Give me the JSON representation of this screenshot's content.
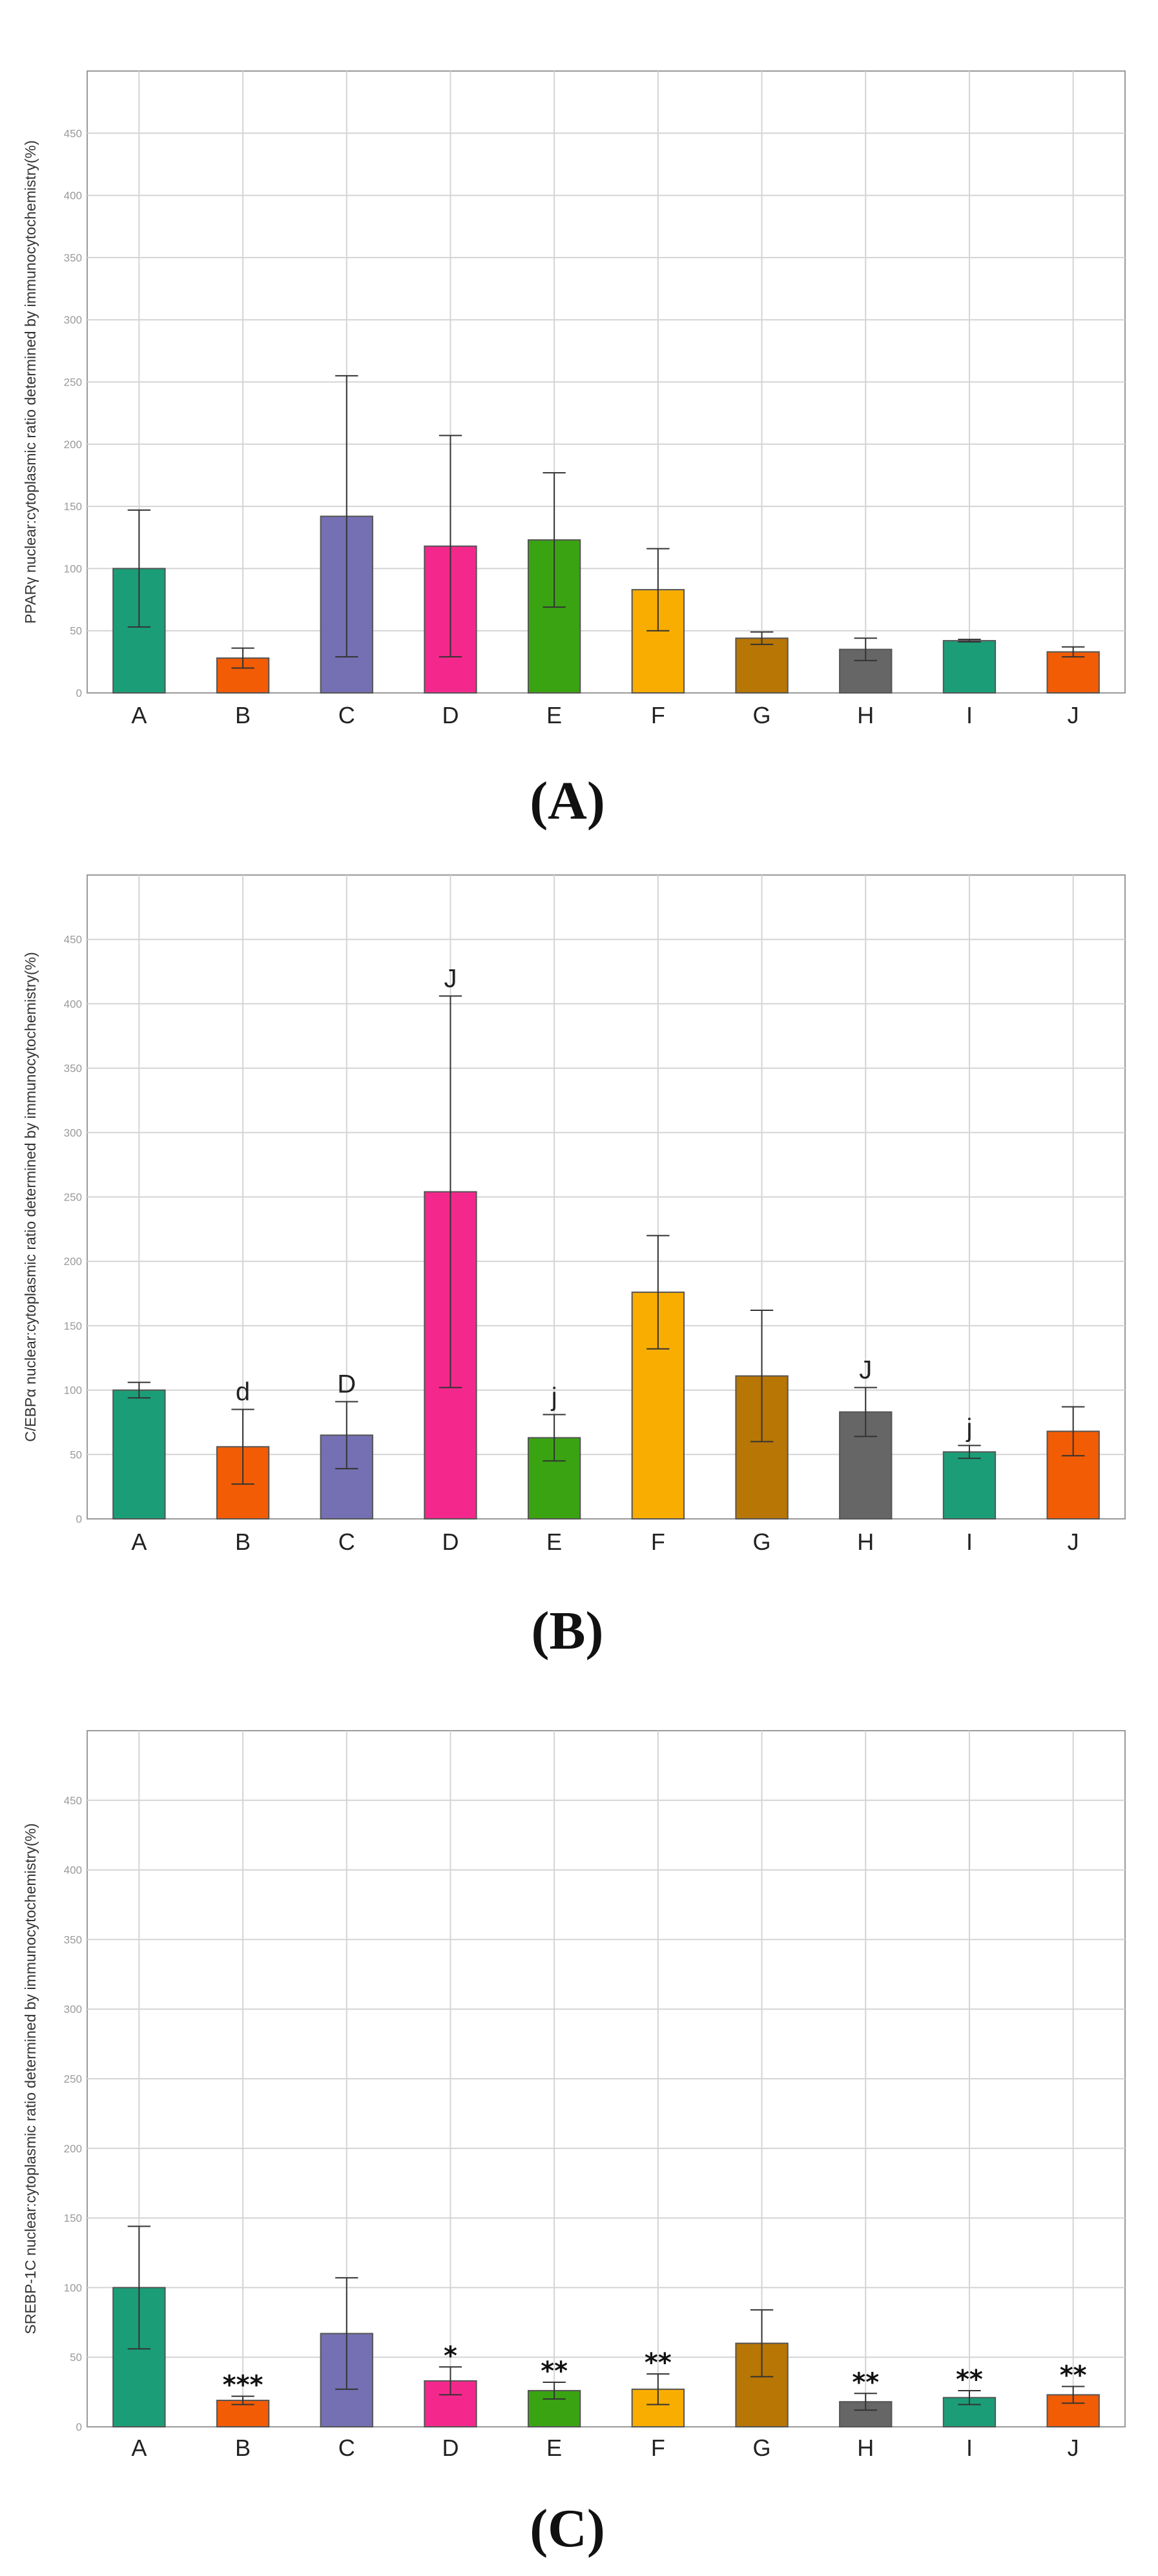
{
  "figure": {
    "panels": [
      {
        "panel_label": "(A)",
        "chart_data": {
          "type": "bar",
          "ylabel": "PPARγ nuclear:cytoplasmic ratio determined by immunocytochemistry(%)",
          "ylim": [
            0,
            500
          ],
          "yticks": [
            0,
            50,
            100,
            150,
            200,
            250,
            300,
            350,
            400,
            450
          ],
          "grid": true,
          "categories": [
            "A",
            "B",
            "C",
            "D",
            "E",
            "F",
            "G",
            "H",
            "I",
            "J"
          ],
          "values": [
            100,
            28,
            142,
            118,
            123,
            83,
            44,
            35,
            42,
            33
          ],
          "errors": [
            47,
            8,
            113,
            89,
            54,
            33,
            5,
            9,
            1,
            4
          ],
          "annotations": [
            "",
            "",
            "",
            "",
            "",
            "",
            "",
            "",
            "",
            ""
          ],
          "colors": [
            "#1b9e77",
            "#f25c05",
            "#7570b3",
            "#f4288c",
            "#3aa312",
            "#f8ad00",
            "#b87604",
            "#666666",
            "#1b9e77",
            "#f25c05"
          ]
        }
      },
      {
        "panel_label": "(B)",
        "chart_data": {
          "type": "bar",
          "ylabel": "C/EBPα nuclear:cytoplasmic ratio determined by immunocytochemistry(%)",
          "ylim": [
            0,
            500
          ],
          "yticks": [
            0,
            50,
            100,
            150,
            200,
            250,
            300,
            350,
            400,
            450
          ],
          "grid": true,
          "categories": [
            "A",
            "B",
            "C",
            "D",
            "E",
            "F",
            "G",
            "H",
            "I",
            "J"
          ],
          "values": [
            100,
            56,
            65,
            254,
            63,
            176,
            111,
            83,
            52,
            68
          ],
          "errors": [
            6,
            29,
            26,
            152,
            18,
            44,
            51,
            19,
            5,
            19
          ],
          "annotations": [
            "",
            "d",
            "D",
            "J",
            "j",
            "",
            "",
            "J",
            "j",
            ""
          ],
          "colors": [
            "#1b9e77",
            "#f25c05",
            "#7570b3",
            "#f4288c",
            "#3aa312",
            "#f8ad00",
            "#b87604",
            "#666666",
            "#1b9e77",
            "#f25c05"
          ]
        }
      },
      {
        "panel_label": "(C)",
        "chart_data": {
          "type": "bar",
          "ylabel": "SREBP-1C nuclear:cytoplasmic ratio determined by immunocytochemistry(%)",
          "ylim": [
            0,
            500
          ],
          "yticks": [
            0,
            50,
            100,
            150,
            200,
            250,
            300,
            350,
            400,
            450
          ],
          "grid": true,
          "categories": [
            "A",
            "B",
            "C",
            "D",
            "E",
            "F",
            "G",
            "H",
            "I",
            "J"
          ],
          "values": [
            100,
            19,
            67,
            33,
            26,
            27,
            60,
            18,
            21,
            23
          ],
          "errors": [
            44,
            3,
            40,
            10,
            6,
            11,
            24,
            6,
            5,
            6
          ],
          "annotations": [
            "",
            "***",
            "",
            "*",
            "**",
            "**",
            "",
            "**",
            "**",
            "**"
          ],
          "colors": [
            "#1b9e77",
            "#f25c05",
            "#7570b3",
            "#f4288c",
            "#3aa312",
            "#f8ad00",
            "#b87604",
            "#666666",
            "#1b9e77",
            "#f25c05"
          ]
        }
      }
    ]
  }
}
